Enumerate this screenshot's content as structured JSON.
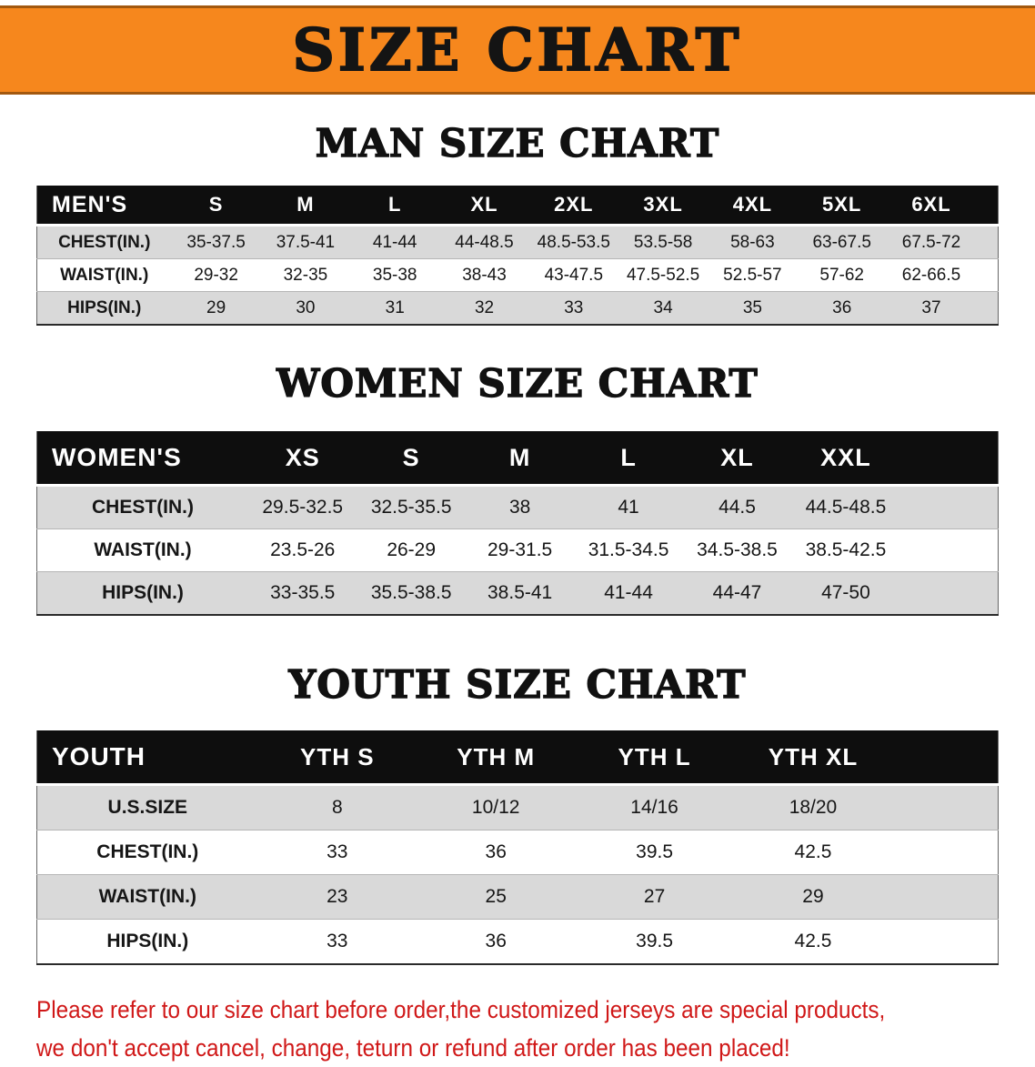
{
  "banner": {
    "title": "SIZE CHART",
    "bg_color": "#f6871d",
    "text_color": "#141414"
  },
  "sections": [
    {
      "heading": "MAN SIZE CHART",
      "table": {
        "header": [
          "MEN'S",
          "S",
          "M",
          "L",
          "XL",
          "2XL",
          "3XL",
          "4XL",
          "5XL",
          "6XL"
        ],
        "rows": [
          [
            "CHEST(IN.)",
            "35-37.5",
            "37.5-41",
            "41-44",
            "44-48.5",
            "48.5-53.5",
            "53.5-58",
            "58-63",
            "63-67.5",
            "67.5-72"
          ],
          [
            "WAIST(IN.)",
            "29-32",
            "32-35",
            "35-38",
            "38-43",
            "43-47.5",
            "47.5-52.5",
            "52.5-57",
            "57-62",
            "62-66.5"
          ],
          [
            "HIPS(IN.)",
            "29",
            "30",
            "31",
            "32",
            "33",
            "34",
            "35",
            "36",
            "37"
          ]
        ]
      }
    },
    {
      "heading": "WOMEN SIZE CHART",
      "table": {
        "header": [
          "WOMEN'S",
          "XS",
          "S",
          "M",
          "L",
          "XL",
          "XXL"
        ],
        "rows": [
          [
            "CHEST(IN.)",
            "29.5-32.5",
            "32.5-35.5",
            "38",
            "41",
            "44.5",
            "44.5-48.5"
          ],
          [
            "WAIST(IN.)",
            "23.5-26",
            "26-29",
            "29-31.5",
            "31.5-34.5",
            "34.5-38.5",
            "38.5-42.5"
          ],
          [
            "HIPS(IN.)",
            "33-35.5",
            "35.5-38.5",
            "38.5-41",
            "41-44",
            "44-47",
            "47-50"
          ]
        ]
      }
    },
    {
      "heading": "YOUTH SIZE CHART",
      "table": {
        "header": [
          "YOUTH",
          "YTH S",
          "YTH M",
          "YTH L",
          "YTH XL"
        ],
        "rows": [
          [
            "U.S.SIZE",
            "8",
            "10/12",
            "14/16",
            "18/20"
          ],
          [
            "CHEST(IN.)",
            "33",
            "36",
            "39.5",
            "42.5"
          ],
          [
            "WAIST(IN.)",
            "23",
            "25",
            "27",
            "29"
          ],
          [
            "HIPS(IN.)",
            "33",
            "36",
            "39.5",
            "42.5"
          ]
        ]
      }
    }
  ],
  "disclaimer": {
    "color": "#d01818",
    "line1": "Please refer to our size chart before order,the customized jerseys are special products,",
    "line2": "we don't accept cancel, change, teturn or refund after order has been placed!"
  },
  "colors": {
    "header_bg": "#0e0e0e",
    "row_shade": "#d9d9d9",
    "row_plain": "#ffffff"
  }
}
